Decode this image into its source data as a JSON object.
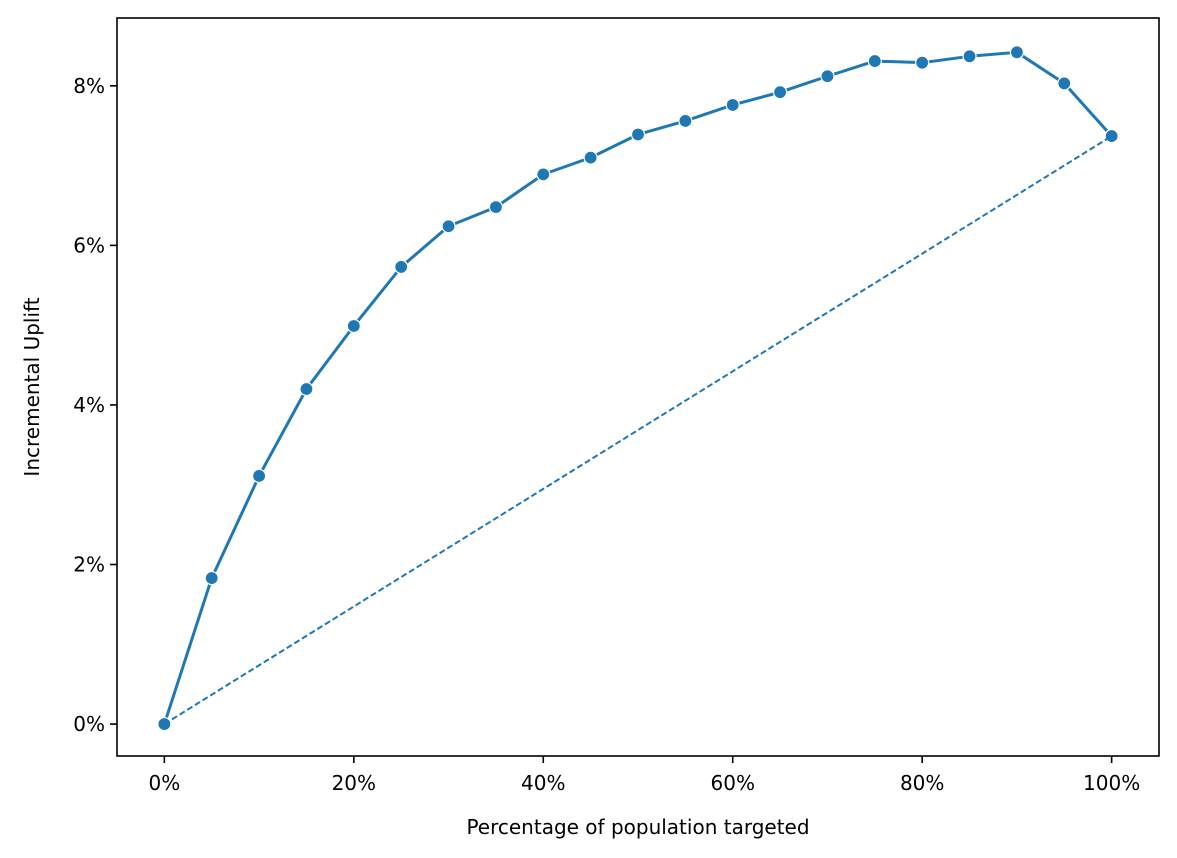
{
  "chart_data": {
    "type": "line",
    "title": "",
    "xlabel": "Percentage of population targeted",
    "ylabel": "Incremental Uplift",
    "xlim": [
      -5,
      105
    ],
    "ylim": [
      -0.4,
      8.85
    ],
    "x_ticks": [
      0,
      20,
      40,
      60,
      80,
      100
    ],
    "x_tick_labels": [
      "0%",
      "20%",
      "40%",
      "60%",
      "80%",
      "100%"
    ],
    "y_ticks": [
      0,
      2,
      4,
      6,
      8
    ],
    "y_tick_labels": [
      "0%",
      "2%",
      "4%",
      "6%",
      "8%"
    ],
    "grid": false,
    "legend": "none",
    "series": [
      {
        "style": "solid-with-markers",
        "color": "#1f77b4",
        "x": [
          0,
          5,
          10,
          15,
          20,
          25,
          30,
          35,
          40,
          45,
          50,
          55,
          60,
          65,
          70,
          75,
          80,
          85,
          90,
          95,
          100
        ],
        "y": [
          0.0,
          1.83,
          3.11,
          4.2,
          4.99,
          5.73,
          6.24,
          6.48,
          6.89,
          7.1,
          7.39,
          7.56,
          7.76,
          7.92,
          8.12,
          8.31,
          8.29,
          8.37,
          8.42,
          8.03,
          7.37
        ]
      },
      {
        "style": "dashed",
        "color": "#1f77b4",
        "x": [
          0,
          100
        ],
        "y": [
          0.0,
          7.37
        ]
      }
    ]
  }
}
